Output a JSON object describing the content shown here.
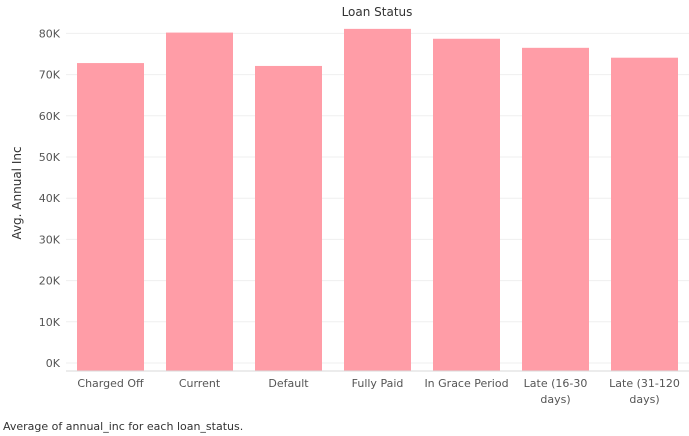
{
  "chart_data": {
    "type": "bar",
    "title": "Loan Status",
    "xlabel": "",
    "ylabel": "Avg. Annual Inc",
    "categories": [
      [
        "Charged Off"
      ],
      [
        "Current"
      ],
      [
        "Default"
      ],
      [
        "Fully Paid"
      ],
      [
        "In Grace Period"
      ],
      [
        "Late (16-30",
        "days)"
      ],
      [
        "Late (31-120",
        "days)"
      ]
    ],
    "values": [
      72800,
      80200,
      72100,
      81100,
      78700,
      76500,
      74100
    ],
    "ylim": [
      0,
      85000
    ],
    "yticks": [
      0,
      10000,
      20000,
      30000,
      40000,
      50000,
      60000,
      70000,
      80000
    ],
    "ytick_labels": [
      "0K",
      "10K",
      "20K",
      "30K",
      "40K",
      "50K",
      "60K",
      "70K",
      "80K"
    ],
    "grid": true,
    "legend": "none",
    "bar_color": "#ff9da7"
  },
  "caption": "Average of annual_inc for each loan_status."
}
